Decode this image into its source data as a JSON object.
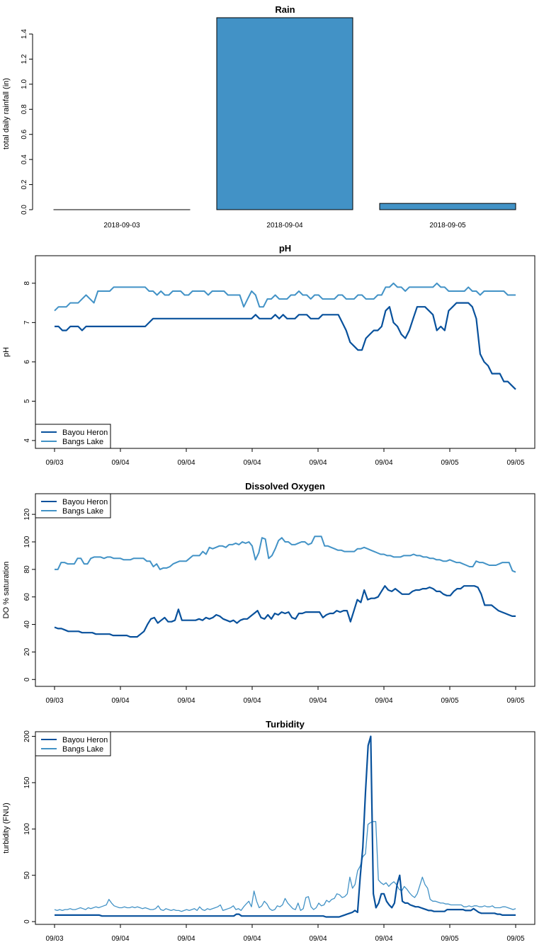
{
  "colors": {
    "bayou": "#08519c",
    "bangs": "#4292c6",
    "bar": "#4292c6"
  },
  "chart_data": [
    {
      "type": "bar",
      "title": "Rain",
      "ylabel": "total daily rainfall (in)",
      "categories": [
        "2018-09-03",
        "2018-09-04",
        "2018-09-05"
      ],
      "values": [
        0.0,
        1.53,
        0.05
      ],
      "ylim": [
        0,
        1.53
      ],
      "yticks": [
        "0.0",
        "0.2",
        "0.4",
        "0.6",
        "0.8",
        "1.0",
        "1.2",
        "1.4"
      ]
    },
    {
      "type": "line",
      "title": "pH",
      "ylabel": "pH",
      "ylim": [
        3.8,
        8.7
      ],
      "yticks": [
        "4",
        "5",
        "6",
        "7",
        "8"
      ],
      "xticks": [
        "09/03",
        "09/04",
        "09/04",
        "09/04",
        "09/04",
        "09/04",
        "09/05",
        "09/05"
      ],
      "legend": "bottom-left",
      "series": [
        {
          "name": "Bayou Heron",
          "width": 2.2,
          "values": [
            6.9,
            6.9,
            6.8,
            6.8,
            6.9,
            6.9,
            6.9,
            6.8,
            6.9,
            6.9,
            6.9,
            6.9,
            6.9,
            6.9,
            6.9,
            6.9,
            6.9,
            6.9,
            6.9,
            6.9,
            6.9,
            6.9,
            6.9,
            6.9,
            7.0,
            7.1,
            7.1,
            7.1,
            7.1,
            7.1,
            7.1,
            7.1,
            7.1,
            7.1,
            7.1,
            7.1,
            7.1,
            7.1,
            7.1,
            7.1,
            7.1,
            7.1,
            7.1,
            7.1,
            7.1,
            7.1,
            7.1,
            7.1,
            7.1,
            7.1,
            7.1,
            7.2,
            7.1,
            7.1,
            7.1,
            7.1,
            7.2,
            7.1,
            7.2,
            7.1,
            7.1,
            7.1,
            7.2,
            7.2,
            7.2,
            7.1,
            7.1,
            7.1,
            7.2,
            7.2,
            7.2,
            7.2,
            7.2,
            7.0,
            6.8,
            6.5,
            6.4,
            6.3,
            6.3,
            6.6,
            6.7,
            6.8,
            6.8,
            6.9,
            7.3,
            7.4,
            7.0,
            6.9,
            6.7,
            6.6,
            6.8,
            7.1,
            7.4,
            7.4,
            7.4,
            7.3,
            7.2,
            6.8,
            6.9,
            6.8,
            7.3,
            7.4,
            7.5,
            7.5,
            7.5,
            7.5,
            7.4,
            7.1,
            6.2,
            6.0,
            5.9,
            5.7,
            5.7,
            5.7,
            5.5,
            5.5,
            5.4,
            5.3
          ]
        },
        {
          "name": "Bangs Lake",
          "width": 2.0,
          "values": [
            7.3,
            7.4,
            7.4,
            7.4,
            7.5,
            7.5,
            7.5,
            7.6,
            7.7,
            7.6,
            7.5,
            7.8,
            7.8,
            7.8,
            7.8,
            7.9,
            7.9,
            7.9,
            7.9,
            7.9,
            7.9,
            7.9,
            7.9,
            7.9,
            7.8,
            7.8,
            7.7,
            7.8,
            7.7,
            7.7,
            7.8,
            7.8,
            7.8,
            7.7,
            7.7,
            7.8,
            7.8,
            7.8,
            7.8,
            7.7,
            7.8,
            7.8,
            7.8,
            7.8,
            7.7,
            7.7,
            7.7,
            7.7,
            7.4,
            7.6,
            7.8,
            7.7,
            7.4,
            7.4,
            7.6,
            7.6,
            7.7,
            7.6,
            7.6,
            7.6,
            7.7,
            7.7,
            7.8,
            7.7,
            7.7,
            7.6,
            7.7,
            7.7,
            7.6,
            7.6,
            7.6,
            7.6,
            7.7,
            7.7,
            7.6,
            7.6,
            7.6,
            7.7,
            7.7,
            7.6,
            7.6,
            7.6,
            7.7,
            7.7,
            7.9,
            7.9,
            8.0,
            7.9,
            7.9,
            7.8,
            7.9,
            7.9,
            7.9,
            7.9,
            7.9,
            7.9,
            7.9,
            8.0,
            7.9,
            7.9,
            7.8,
            7.8,
            7.8,
            7.8,
            7.8,
            7.9,
            7.8,
            7.8,
            7.7,
            7.8,
            7.8,
            7.8,
            7.8,
            7.8,
            7.8,
            7.7,
            7.7,
            7.7
          ]
        }
      ]
    },
    {
      "type": "line",
      "title": "Dissolved Oxygen",
      "ylabel": "DO % saturation",
      "ylim": [
        -5,
        135
      ],
      "yticks": [
        "0",
        "20",
        "40",
        "60",
        "80",
        "100",
        "120"
      ],
      "xticks": [
        "09/03",
        "09/04",
        "09/04",
        "09/04",
        "09/04",
        "09/04",
        "09/05",
        "09/05"
      ],
      "legend": "top-left",
      "series": [
        {
          "name": "Bayou Heron",
          "width": 2.2,
          "values": [
            38,
            37,
            37,
            36,
            35,
            35,
            35,
            35,
            34,
            34,
            34,
            34,
            33,
            33,
            33,
            33,
            33,
            32,
            32,
            32,
            32,
            32,
            31,
            31,
            31,
            33,
            35,
            40,
            44,
            45,
            41,
            43,
            45,
            42,
            42,
            43,
            51,
            43,
            43,
            43,
            43,
            43,
            44,
            43,
            45,
            44,
            45,
            47,
            46,
            44,
            43,
            42,
            43,
            41,
            43,
            44,
            44,
            46,
            48,
            50,
            45,
            44,
            47,
            44,
            48,
            47,
            49,
            48,
            49,
            45,
            44,
            48,
            48,
            49,
            49,
            49,
            49,
            49,
            45,
            47,
            48,
            48,
            50,
            49,
            50,
            50,
            42,
            50,
            58,
            56,
            65,
            58,
            59,
            59,
            60,
            64,
            68,
            65,
            64,
            66,
            64,
            62,
            62,
            62,
            64,
            65,
            65,
            66,
            66,
            67,
            66,
            64,
            64,
            62,
            61,
            61,
            64,
            66,
            66,
            68,
            68,
            68,
            68,
            67,
            62,
            54,
            54,
            54,
            52,
            50,
            49,
            48,
            47,
            46,
            46
          ]
        },
        {
          "name": "Bangs Lake",
          "width": 2.0,
          "values": [
            80,
            80,
            85,
            85,
            84,
            84,
            84,
            88,
            88,
            84,
            84,
            88,
            89,
            89,
            89,
            88,
            89,
            89,
            88,
            88,
            88,
            87,
            87,
            87,
            88,
            88,
            88,
            88,
            86,
            86,
            82,
            84,
            80,
            81,
            81,
            82,
            84,
            85,
            86,
            86,
            86,
            88,
            90,
            90,
            90,
            93,
            91,
            96,
            95,
            96,
            97,
            97,
            96,
            98,
            98,
            99,
            98,
            100,
            99,
            100,
            97,
            87,
            92,
            103,
            102,
            88,
            90,
            95,
            101,
            103,
            100,
            100,
            98,
            98,
            99,
            100,
            100,
            98,
            99,
            104,
            104,
            104,
            97,
            97,
            96,
            95,
            94,
            94,
            93,
            93,
            93,
            93,
            95,
            95,
            96,
            95,
            94,
            93,
            92,
            91,
            91,
            90,
            90,
            89,
            89,
            89,
            90,
            90,
            90,
            91,
            90,
            90,
            89,
            89,
            88,
            88,
            87,
            87,
            86,
            86,
            87,
            86,
            85,
            85,
            84,
            83,
            82,
            82,
            86,
            85,
            85,
            84,
            83,
            83,
            83,
            84,
            85,
            85,
            85,
            79,
            78
          ]
        }
      ]
    },
    {
      "type": "line",
      "title": "Turbidity",
      "ylabel": "turbidity (FNU)",
      "ylim": [
        -3,
        205
      ],
      "yticks": [
        "0",
        "50",
        "100",
        "150",
        "200"
      ],
      "xticks": [
        "09/03",
        "09/04",
        "09/04",
        "09/04",
        "09/04",
        "09/04",
        "09/05",
        "09/05"
      ],
      "legend": "top-left",
      "series": [
        {
          "name": "Bayou Heron",
          "width": 2.2,
          "values": [
            7,
            7,
            7,
            7,
            7,
            7,
            7,
            7,
            7,
            7,
            7,
            7,
            7,
            7,
            7,
            7,
            7,
            7,
            6,
            6,
            6,
            6,
            6,
            6,
            6,
            6,
            6,
            6,
            6,
            6,
            6,
            6,
            6,
            6,
            6,
            6,
            6,
            6,
            6,
            6,
            6,
            6,
            6,
            6,
            6,
            6,
            6,
            6,
            6,
            6,
            6,
            6,
            6,
            6,
            6,
            6,
            6,
            6,
            6,
            6,
            6,
            6,
            6,
            6,
            6,
            6,
            6,
            6,
            6,
            8,
            8,
            6,
            6,
            6,
            6,
            6,
            6,
            6,
            6,
            6,
            6,
            6,
            6,
            6,
            6,
            6,
            6,
            6,
            6,
            6,
            6,
            6,
            6,
            6,
            6,
            6,
            6,
            6,
            6,
            6,
            6,
            6,
            6,
            5,
            5,
            5,
            5,
            5,
            5,
            6,
            7,
            8,
            9,
            10,
            12,
            10,
            48,
            80,
            140,
            190,
            200,
            30,
            15,
            20,
            30,
            30,
            22,
            18,
            15,
            20,
            40,
            50,
            22,
            20,
            20,
            18,
            17,
            16,
            16,
            15,
            14,
            13,
            12,
            12,
            11,
            11,
            11,
            11,
            11,
            13,
            13,
            13,
            13,
            13,
            13,
            13,
            12,
            12,
            12,
            14,
            12,
            10,
            9,
            9,
            9,
            9,
            9,
            9,
            8,
            8,
            7,
            7,
            7,
            7,
            7,
            7
          ]
        },
        {
          "name": "Bangs Lake",
          "width": 1.3,
          "values": [
            13,
            12,
            13,
            12,
            13,
            13,
            14,
            13,
            13,
            14,
            15,
            14,
            13,
            15,
            14,
            15,
            16,
            15,
            16,
            17,
            18,
            24,
            20,
            17,
            16,
            15,
            15,
            16,
            15,
            15,
            16,
            15,
            16,
            15,
            14,
            15,
            14,
            13,
            13,
            14,
            17,
            13,
            12,
            14,
            13,
            12,
            13,
            12,
            12,
            11,
            12,
            13,
            12,
            13,
            14,
            12,
            16,
            13,
            12,
            14,
            13,
            14,
            15,
            16,
            18,
            12,
            13,
            14,
            15,
            17,
            13,
            14,
            12,
            16,
            19,
            22,
            16,
            33,
            22,
            15,
            17,
            22,
            19,
            14,
            12,
            13,
            17,
            16,
            18,
            25,
            20,
            17,
            14,
            13,
            20,
            12,
            14,
            26,
            27,
            16,
            13,
            15,
            20,
            17,
            18,
            23,
            21,
            24,
            25,
            30,
            29,
            26,
            27,
            30,
            48,
            36,
            40,
            55,
            60,
            70,
            73,
            105,
            107,
            108,
            108,
            45,
            42,
            40,
            42,
            38,
            41,
            43,
            40,
            35,
            33,
            38,
            35,
            31,
            28,
            26,
            30,
            39,
            48,
            40,
            36,
            24,
            22,
            22,
            21,
            20,
            20,
            19,
            19,
            18,
            18,
            18,
            18,
            18,
            16,
            16,
            17,
            16,
            17,
            17,
            16,
            16,
            17,
            16,
            16,
            17,
            15,
            15,
            15,
            16,
            16,
            15,
            14,
            13,
            14
          ]
        }
      ]
    }
  ]
}
